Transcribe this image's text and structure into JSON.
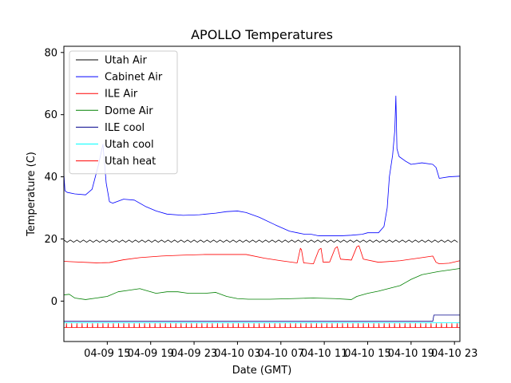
{
  "chart_data": {
    "type": "line",
    "title": "APOLLO Temperatures",
    "xlabel": "Date (GMT)",
    "ylabel": "Temperature (C)",
    "xlim": [
      11.0,
      47.5
    ],
    "ylim": [
      -13,
      82
    ],
    "x_units": "hours since 04-09 00:00 GMT",
    "yticks": [
      0,
      20,
      40,
      60,
      80
    ],
    "ytick_labels": [
      "0",
      "20",
      "40",
      "60",
      "80"
    ],
    "xticks": [
      15,
      19,
      23,
      27,
      31,
      35,
      39,
      43,
      47
    ],
    "xtick_labels": [
      "04-09 15",
      "04-09 19",
      "04-09 23",
      "04-10 03",
      "04-10 07",
      "04-10 11",
      "04-10 15",
      "04-10 19",
      "04-10 23"
    ],
    "legend_position": "top-left",
    "series": [
      {
        "name": "Utah Air",
        "color": "#000000",
        "x": [
          11.0,
          47.5
        ],
        "y": [
          19.3,
          19.3
        ],
        "wave": {
          "amplitude": 0.35,
          "period": 0.6
        }
      },
      {
        "name": "Cabinet Air",
        "color": "#0000ff",
        "x": [
          11.0,
          11.1,
          11.3,
          12.0,
          13.0,
          13.6,
          14.2,
          14.6,
          14.9,
          15.2,
          15.5,
          16.5,
          17.5,
          18.5,
          19.5,
          20.5,
          22.0,
          23.5,
          25.0,
          26.0,
          27.0,
          27.8,
          29.0,
          30.5,
          31.8,
          32.5,
          33.2,
          33.8,
          34.5,
          35.5,
          36.5,
          37.5,
          38.5,
          39.0,
          40.0,
          40.5,
          40.8,
          41.0,
          41.3,
          41.5,
          41.6,
          41.7,
          41.9,
          42.5,
          43.0,
          44.0,
          45.0,
          45.3,
          45.6,
          46.5,
          47.5
        ],
        "y": [
          41.0,
          35.5,
          35.0,
          34.5,
          34.2,
          36.0,
          44.0,
          50.5,
          38.0,
          32.0,
          31.5,
          32.8,
          32.5,
          30.5,
          29.0,
          28.0,
          27.6,
          27.8,
          28.3,
          28.8,
          29.0,
          28.5,
          27.0,
          24.5,
          22.5,
          22.0,
          21.5,
          21.5,
          21.0,
          21.0,
          21.0,
          21.2,
          21.5,
          22.0,
          22.0,
          24.0,
          30.0,
          40.0,
          47.0,
          55.0,
          66.0,
          49.0,
          46.5,
          45.0,
          44.0,
          44.5,
          44.0,
          43.0,
          39.5,
          40.0,
          40.2
        ]
      },
      {
        "name": "ILE Air",
        "color": "#ff0000",
        "x": [
          11.0,
          11.5,
          14.0,
          15.2,
          16.5,
          18.0,
          20.0,
          22.0,
          24.0,
          26.0,
          27.8,
          29.5,
          31.0,
          32.5,
          32.8,
          32.9,
          33.1,
          34.0,
          34.5,
          34.7,
          34.9,
          35.5,
          36.0,
          36.2,
          36.5,
          37.5,
          38.0,
          38.2,
          38.6,
          40.0,
          42.0,
          44.0,
          45.0,
          45.3,
          45.6,
          46.5,
          47.5
        ],
        "y": [
          12.8,
          12.7,
          12.3,
          12.4,
          13.3,
          14.0,
          14.5,
          14.8,
          15.0,
          15.0,
          15.0,
          13.8,
          13.0,
          12.3,
          17.0,
          16.5,
          12.3,
          12.0,
          16.5,
          17.0,
          12.5,
          12.6,
          17.0,
          17.5,
          13.5,
          13.2,
          17.5,
          17.8,
          13.5,
          12.5,
          13.0,
          14.0,
          14.5,
          12.5,
          12.0,
          12.2,
          13.0
        ]
      },
      {
        "name": "Dome Air",
        "color": "#008000",
        "x": [
          11.0,
          11.5,
          12.0,
          13.0,
          14.0,
          15.0,
          16.0,
          17.0,
          18.0,
          18.5,
          19.5,
          20.5,
          21.5,
          22.5,
          24.0,
          25.0,
          26.0,
          27.0,
          28.0,
          30.0,
          32.0,
          34.0,
          36.0,
          37.5,
          38.0,
          39.0,
          40.0,
          42.0,
          43.0,
          44.0,
          45.5,
          47.5
        ],
        "y": [
          2.0,
          2.2,
          1.0,
          0.5,
          1.0,
          1.5,
          3.0,
          3.5,
          4.0,
          3.5,
          2.5,
          3.0,
          3.0,
          2.5,
          2.5,
          2.8,
          1.5,
          0.8,
          0.6,
          0.6,
          0.8,
          1.0,
          0.8,
          0.5,
          1.5,
          2.5,
          3.2,
          5.0,
          7.0,
          8.5,
          9.5,
          10.5
        ]
      },
      {
        "name": "ILE cool",
        "color": "#00008b",
        "x": [
          11.0,
          45.0,
          45.1,
          47.5
        ],
        "y": [
          -6.5,
          -6.5,
          -4.5,
          -4.5
        ]
      },
      {
        "name": "Utah cool",
        "color": "#00ffff",
        "x": [
          11.0,
          47.5
        ],
        "y": [
          -7.0,
          -7.0
        ]
      },
      {
        "name": "Utah heat",
        "color": "#ff0000",
        "x": [
          11.0,
          47.5
        ],
        "y": [
          -8.5,
          -8.5
        ],
        "spikes": {
          "period": 0.48,
          "height": 1.3
        }
      }
    ]
  }
}
